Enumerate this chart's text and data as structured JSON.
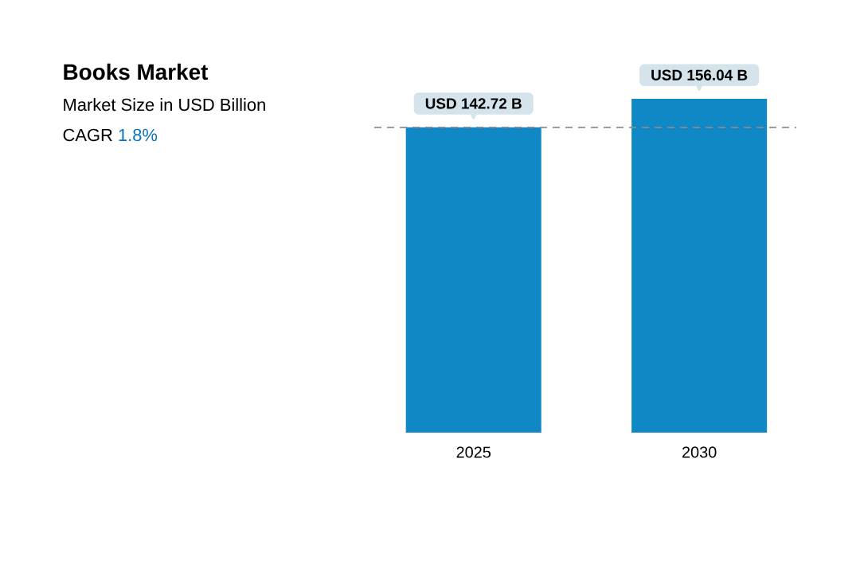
{
  "chart_data": {
    "type": "bar",
    "title": "Books Market",
    "subtitle": "Market Size in USD Billion",
    "annotations": [
      "CAGR",
      "1.8%"
    ],
    "categories": [
      "2025",
      "2030"
    ],
    "values": [
      142.72,
      156.04
    ],
    "value_labels": [
      "USD 142.72 B",
      "USD 156.04 B"
    ],
    "color": "#1088c6",
    "ref_lines": [
      {
        "axis": "y",
        "value": 142.72,
        "color": "#8c8c8c",
        "line_style": "dashed"
      }
    ]
  }
}
